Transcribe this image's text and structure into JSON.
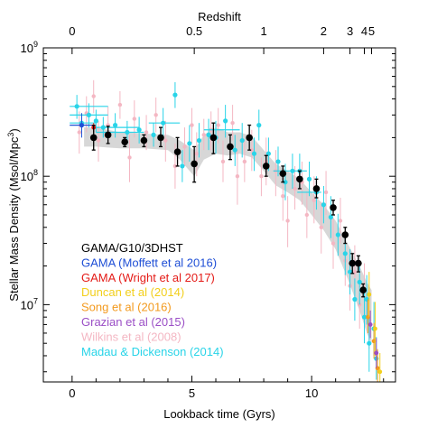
{
  "chart_data": {
    "type": "scatter",
    "xlabel": "Lookback time (Gyrs)",
    "ylabel_main": "Stellar Mass Density (Msol/Mpc",
    "ylabel_sup": "3",
    "ylabel_end": ")",
    "top_axis_label": "Redshift",
    "xlim": [
      -1.2,
      13.5
    ],
    "ylim": [
      2500000.0,
      1000000000.0
    ],
    "y_scale": "log",
    "grid": false,
    "legend_position": "bottom-left",
    "x_ticks": [
      {
        "value": 0,
        "label": "0"
      },
      {
        "value": 5,
        "label": "5"
      },
      {
        "value": 10,
        "label": "10"
      }
    ],
    "y_ticks": [
      {
        "value": 10000000.0,
        "base": "10",
        "exp": "7"
      },
      {
        "value": 100000000.0,
        "base": "10",
        "exp": "8"
      },
      {
        "value": 1000000000.0,
        "base": "10",
        "exp": "9"
      }
    ],
    "top_ticks": [
      {
        "value": 0.0,
        "label": "0"
      },
      {
        "value": 5.1,
        "label": "0.5"
      },
      {
        "value": 8.0,
        "label": "1"
      },
      {
        "value": 10.5,
        "label": "2"
      },
      {
        "value": 11.6,
        "label": "3"
      },
      {
        "value": 12.2,
        "label": "4"
      },
      {
        "value": 12.5,
        "label": "5"
      }
    ],
    "band": {
      "x": [
        0.5,
        1.0,
        2.0,
        3.0,
        4.0,
        4.5,
        5.1,
        5.5,
        6.0,
        6.5,
        7.0,
        7.5,
        8.0,
        8.5,
        9.0,
        9.5,
        10.0,
        10.5,
        11.0,
        11.5,
        12.0,
        12.3,
        12.5
      ],
      "lower": [
        170000000.0,
        170000000.0,
        165000000.0,
        165000000.0,
        160000000.0,
        135000000.0,
        100000000.0,
        135000000.0,
        150000000.0,
        145000000.0,
        150000000.0,
        140000000.0,
        110000000.0,
        85000000.0,
        75000000.0,
        65000000.0,
        50000000.0,
        38000000.0,
        27000000.0,
        16000000.0,
        9000000.0,
        6000000.0,
        5000000.0
      ],
      "upper": [
        240000000.0,
        240000000.0,
        220000000.0,
        215000000.0,
        210000000.0,
        190000000.0,
        160000000.0,
        210000000.0,
        240000000.0,
        220000000.0,
        220000000.0,
        205000000.0,
        160000000.0,
        125000000.0,
        110000000.0,
        95000000.0,
        75000000.0,
        60000000.0,
        45000000.0,
        30000000.0,
        20000000.0,
        15000000.0,
        13000000.0
      ]
    },
    "series": [
      {
        "name": "Wilkins et al (2008)",
        "color": "#f4b7c3",
        "marker_radius": 2.2,
        "points": [
          [
            0.3,
            220000000.0,
            150000000.0,
            320000000.0
          ],
          [
            0.6,
            310000000.0,
            220000000.0,
            420000000.0
          ],
          [
            0.9,
            420000000.0,
            310000000.0,
            560000000.0
          ],
          [
            1.1,
            190000000.0,
            130000000.0,
            270000000.0
          ],
          [
            1.5,
            250000000.0,
            180000000.0,
            350000000.0
          ],
          [
            2.0,
            360000000.0,
            280000000.0,
            460000000.0
          ],
          [
            2.4,
            140000000.0,
            90000000.0,
            210000000.0
          ],
          [
            2.6,
            280000000.0,
            200000000.0,
            390000000.0
          ],
          [
            3.1,
            220000000.0,
            160000000.0,
            300000000.0
          ],
          [
            3.5,
            300000000.0,
            220000000.0,
            410000000.0
          ],
          [
            3.9,
            190000000.0,
            130000000.0,
            270000000.0
          ],
          [
            4.3,
            120000000.0,
            80000000.0,
            180000000.0
          ],
          [
            4.7,
            170000000.0,
            120000000.0,
            240000000.0
          ],
          [
            5.0,
            250000000.0,
            180000000.0,
            340000000.0
          ],
          [
            5.2,
            150000000.0,
            100000000.0,
            220000000.0
          ],
          [
            5.5,
            210000000.0,
            160000000.0,
            280000000.0
          ],
          [
            5.8,
            230000000.0,
            160000000.0,
            320000000.0
          ],
          [
            6.1,
            250000000.0,
            180000000.0,
            340000000.0
          ],
          [
            6.3,
            130000000.0,
            90000000.0,
            190000000.0
          ],
          [
            6.7,
            260000000.0,
            190000000.0,
            360000000.0
          ],
          [
            6.9,
            100000000.0,
            60000000.0,
            160000000.0
          ],
          [
            7.2,
            130000000.0,
            90000000.0,
            190000000.0
          ],
          [
            7.5,
            160000000.0,
            110000000.0,
            230000000.0
          ],
          [
            7.9,
            100000000.0,
            70000000.0,
            140000000.0
          ],
          [
            8.1,
            130000000.0,
            85000000.0,
            200000000.0
          ],
          [
            8.5,
            110000000.0,
            70000000.0,
            160000000.0
          ],
          [
            8.8,
            70000000.0,
            45000000.0,
            110000000.0
          ],
          [
            9.0,
            45000000.0,
            28000000.0,
            70000000.0
          ],
          [
            9.3,
            80000000.0,
            55000000.0,
            120000000.0
          ],
          [
            9.6,
            90000000.0,
            60000000.0,
            130000000.0
          ],
          [
            9.8,
            50000000.0,
            33000000.0,
            75000000.0
          ],
          [
            10.1,
            65000000.0,
            43000000.0,
            100000000.0
          ],
          [
            10.4,
            40000000.0,
            25000000.0,
            63000000.0
          ],
          [
            10.6,
            75000000.0,
            50000000.0,
            110000000.0
          ],
          [
            10.9,
            30000000.0,
            19000000.0,
            47000000.0
          ],
          [
            11.2,
            45000000.0,
            30000000.0,
            68000000.0
          ],
          [
            11.4,
            22000000.0,
            14000000.0,
            34000000.0
          ],
          [
            11.6,
            14000000.0,
            9000000.0,
            22000000.0
          ],
          [
            11.8,
            18000000.0,
            11000000.0,
            29000000.0
          ],
          [
            12.0,
            10000000.0,
            6500000.0,
            16000000.0
          ],
          [
            12.2,
            13000000.0,
            8000000.0,
            21000000.0
          ],
          [
            12.4,
            7500000.0,
            4500000.0,
            12500000.0
          ]
        ]
      },
      {
        "name": "Madau & Dickenson (2014)",
        "color": "#29d4e8",
        "marker_radius": 2.6,
        "points": [
          [
            0.2,
            350000000.0,
            280000000.0,
            430000000.0
          ],
          [
            0.4,
            260000000.0,
            220000000.0,
            310000000.0
          ],
          [
            0.7,
            300000000.0,
            240000000.0,
            370000000.0
          ],
          [
            1.0,
            270000000.0,
            220000000.0,
            330000000.0
          ],
          [
            1.3,
            240000000.0,
            200000000.0,
            290000000.0
          ],
          [
            1.8,
            250000000.0,
            200000000.0,
            310000000.0
          ],
          [
            2.3,
            220000000.0,
            180000000.0,
            270000000.0
          ],
          [
            2.8,
            230000000.0,
            180000000.0,
            290000000.0
          ],
          [
            3.4,
            210000000.0,
            170000000.0,
            260000000.0
          ],
          [
            3.8,
            260000000.0,
            200000000.0,
            340000000.0
          ],
          [
            4.3,
            430000000.0,
            340000000.0,
            540000000.0
          ],
          [
            4.6,
            120000000.0,
            90000000.0,
            160000000.0
          ],
          [
            4.9,
            180000000.0,
            130000000.0,
            250000000.0
          ],
          [
            5.3,
            190000000.0,
            140000000.0,
            260000000.0
          ],
          [
            5.7,
            210000000.0,
            160000000.0,
            280000000.0
          ],
          [
            6.0,
            200000000.0,
            150000000.0,
            270000000.0
          ],
          [
            6.4,
            270000000.0,
            200000000.0,
            360000000.0
          ],
          [
            6.8,
            160000000.0,
            120000000.0,
            210000000.0
          ],
          [
            7.1,
            190000000.0,
            140000000.0,
            260000000.0
          ],
          [
            7.6,
            150000000.0,
            110000000.0,
            200000000.0
          ],
          [
            7.8,
            250000000.0,
            190000000.0,
            330000000.0
          ],
          [
            8.2,
            150000000.0,
            110000000.0,
            200000000.0
          ],
          [
            8.6,
            130000000.0,
            100000000.0,
            170000000.0
          ],
          [
            8.9,
            90000000.0,
            65000000.0,
            125000000.0
          ],
          [
            9.2,
            110000000.0,
            80000000.0,
            150000000.0
          ],
          [
            9.5,
            110000000.0,
            80000000.0,
            150000000.0
          ],
          [
            9.9,
            95000000.0,
            70000000.0,
            130000000.0
          ],
          [
            10.2,
            75000000.0,
            55000000.0,
            100000000.0
          ],
          [
            10.5,
            60000000.0,
            43000000.0,
            84000000.0
          ],
          [
            10.8,
            48000000.0,
            33000000.0,
            70000000.0
          ],
          [
            11.1,
            35000000.0,
            24000000.0,
            51000000.0
          ],
          [
            11.4,
            25000000.0,
            17000000.0,
            37000000.0
          ],
          [
            11.6,
            18000000.0,
            12000000.0,
            27000000.0
          ],
          [
            11.8,
            11000000.0,
            7500000.0,
            16000000.0
          ],
          [
            12.0,
            15000000.0,
            10000000.0,
            22000000.0
          ],
          [
            12.2,
            8000000.0,
            5000000.0,
            13000000.0
          ],
          [
            12.3,
            11000000.0,
            7000000.0,
            17000000.0
          ],
          [
            12.4,
            5000000.0,
            3000000.0,
            8000000.0
          ],
          [
            12.6,
            6500000.0,
            4000000.0,
            10500000.0
          ],
          [
            12.7,
            3800000.0,
            2600000.0,
            5600000.0
          ]
        ],
        "hbars": [
          {
            "x0": -0.1,
            "x1": 1.5,
            "y": 350000000.0
          },
          {
            "x0": -0.1,
            "x1": 1.5,
            "y": 300000000.0
          },
          {
            "x0": -0.1,
            "x1": 1.0,
            "y": 260000000.0
          },
          {
            "x0": 0.9,
            "x1": 2.8,
            "y": 240000000.0
          },
          {
            "x0": 1.0,
            "x1": 3.0,
            "y": 220000000.0
          },
          {
            "x0": 3.2,
            "x1": 4.5,
            "y": 260000000.0
          },
          {
            "x0": 5.5,
            "x1": 7.0,
            "y": 230000000.0
          },
          {
            "x0": 8.4,
            "x1": 9.8,
            "y": 110000000.0
          },
          {
            "x0": 9.4,
            "x1": 10.4,
            "y": 75000000.0
          }
        ]
      },
      {
        "name": "Song et al (2016)",
        "color": "#f39a1e",
        "marker_radius": 2.4,
        "points": [
          [
            12.35,
            8000000.0,
            6000000.0,
            11000000.0
          ],
          [
            12.6,
            5200000.0,
            3800000.0,
            7200000.0
          ],
          [
            12.75,
            3200000.0,
            2300000.0,
            4500000.0
          ]
        ]
      },
      {
        "name": "Duncan et al (2014)",
        "color": "#f2cf1b",
        "marker_radius": 2.4,
        "points": [
          [
            12.4,
            12000000.0,
            8000000.0,
            18000000.0
          ],
          [
            12.65,
            6500000.0,
            4000000.0,
            10500000.0
          ],
          [
            12.85,
            3000000.0,
            2200000.0,
            4200000.0
          ]
        ]
      },
      {
        "name": "Grazian et al (2015)",
        "color": "#9b4fc6",
        "marker_radius": 2.4,
        "points": [
          [
            12.45,
            7000000.0,
            5500000.0,
            9000000.0
          ],
          [
            12.7,
            4200000.0,
            3200000.0,
            5500000.0
          ]
        ]
      },
      {
        "name": "GAMA (Moffett et al 2016)",
        "color": "#1f4fd6",
        "marker_radius": 2.6,
        "points": [
          [
            0.4,
            250000000.0,
            200000000.0,
            310000000.0
          ]
        ],
        "hbars": [
          {
            "x0": -0.1,
            "x1": 0.9,
            "y": 250000000.0
          }
        ]
      },
      {
        "name": "GAMA (Wright et al 2017)",
        "color": "#e41b17",
        "marker_radius": 2.4,
        "points": [
          [
            0.9,
            240000000.0,
            220000000.0,
            260000000.0
          ]
        ]
      },
      {
        "name": "GAMA/G10/3DHST",
        "color": "#000000",
        "marker_radius": 3.8,
        "points": [
          [
            0.9,
            200000000.0,
            160000000.0,
            250000000.0
          ],
          [
            1.5,
            210000000.0,
            180000000.0,
            245000000.0
          ],
          [
            2.2,
            185000000.0,
            170000000.0,
            200000000.0
          ],
          [
            3.0,
            190000000.0,
            170000000.0,
            210000000.0
          ],
          [
            3.7,
            200000000.0,
            170000000.0,
            240000000.0
          ],
          [
            4.4,
            155000000.0,
            120000000.0,
            200000000.0
          ],
          [
            5.1,
            125000000.0,
            90000000.0,
            170000000.0
          ],
          [
            5.9,
            200000000.0,
            150000000.0,
            260000000.0
          ],
          [
            6.6,
            170000000.0,
            135000000.0,
            210000000.0
          ],
          [
            7.4,
            200000000.0,
            160000000.0,
            250000000.0
          ],
          [
            8.1,
            120000000.0,
            100000000.0,
            145000000.0
          ],
          [
            8.8,
            105000000.0,
            90000000.0,
            120000000.0
          ],
          [
            9.5,
            95000000.0,
            80000000.0,
            110000000.0
          ],
          [
            10.2,
            80000000.0,
            68000000.0,
            95000000.0
          ],
          [
            10.9,
            57000000.0,
            50000000.0,
            65000000.0
          ],
          [
            11.4,
            35000000.0,
            30000000.0,
            40000000.0
          ],
          [
            11.7,
            21000000.0,
            17500000.0,
            25000000.0
          ],
          [
            11.95,
            21000000.0,
            18000000.0,
            24000000.0
          ],
          [
            12.15,
            13000000.0,
            11500000.0,
            14500000.0
          ]
        ]
      }
    ],
    "legend": [
      {
        "label": "GAMA/G10/3DHST",
        "color": "#000000"
      },
      {
        "label": "GAMA (Moffett et al 2016)",
        "color": "#1f4fd6"
      },
      {
        "label": "GAMA (Wright et al 2017)",
        "color": "#e41b17"
      },
      {
        "label": "Duncan et al (2014)",
        "color": "#f2cf1b"
      },
      {
        "label": "Song et al (2016)",
        "color": "#f39a1e"
      },
      {
        "label": "Grazian et al (2015)",
        "color": "#9b4fc6"
      },
      {
        "label": "Wilkins et al (2008)",
        "color": "#f4b7c3"
      },
      {
        "label": "Madau & Dickenson (2014)",
        "color": "#29d4e8"
      }
    ]
  }
}
